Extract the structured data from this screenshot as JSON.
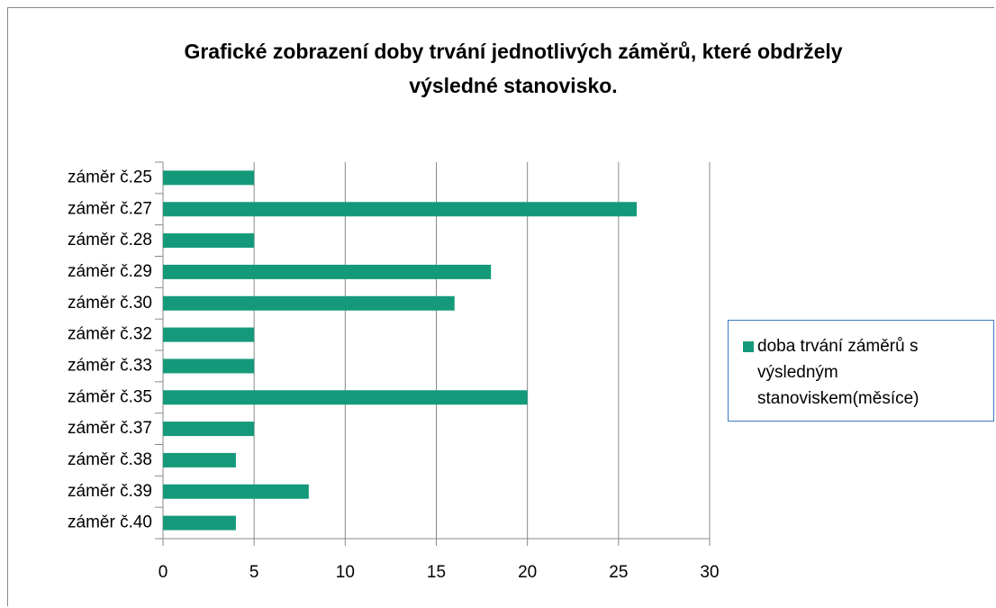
{
  "chart_data": {
    "type": "bar",
    "orientation": "horizontal",
    "title": "Grafické zobrazení doby trvání jednotlivých záměrů, které obdržely výsledné stanovisko.",
    "categories": [
      "záměr č.25",
      "záměr č.27",
      "záměr č.28",
      "záměr č.29",
      "záměr č.30",
      "záměr č.32",
      "záměr č.33",
      "záměr č.35",
      "záměr č.37",
      "záměr č.38",
      "záměr č.39",
      "záměr č.40"
    ],
    "series": [
      {
        "name": "doba trvání záměrů s výsledným stanoviskem(měsíce)",
        "color": "#149a7a",
        "values": [
          5,
          26,
          5,
          18,
          16,
          5,
          5,
          20,
          5,
          4,
          8,
          4
        ]
      }
    ],
    "xlim": [
      0,
      30
    ],
    "xticks": [
      0,
      5,
      10,
      15,
      20,
      25,
      30
    ],
    "grid": true,
    "legend": "right"
  }
}
